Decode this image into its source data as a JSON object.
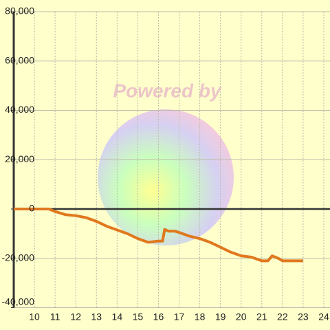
{
  "chart_data": {
    "type": "line",
    "watermark": "Powered by",
    "x": [
      9,
      10.7,
      11,
      11.5,
      12,
      12.5,
      13,
      13.5,
      14,
      14.5,
      15,
      15.5,
      16,
      16.2,
      16.3,
      16.5,
      16.8,
      17,
      17.5,
      18,
      18.5,
      19,
      19.5,
      20,
      20.5,
      21,
      21.3,
      21.5,
      21.8,
      22,
      23
    ],
    "series": [
      {
        "color": "#e0781e",
        "values": [
          0,
          0,
          -1000,
          -2300,
          -2700,
          -3500,
          -5000,
          -7000,
          -8500,
          -10000,
          -12000,
          -13500,
          -13000,
          -13000,
          -8300,
          -9000,
          -9000,
          -9500,
          -11000,
          -12000,
          -13500,
          -15500,
          -17500,
          -19000,
          -19500,
          -21000,
          -21000,
          -19000,
          -20000,
          -21000,
          -21000
        ]
      }
    ],
    "xlim": [
      9,
      24.3
    ],
    "xticks": [
      10,
      11,
      12,
      13,
      14,
      15,
      16,
      17,
      18,
      19,
      20,
      21,
      22,
      23,
      24
    ],
    "ylim": [
      -40000,
      80000
    ],
    "yticks": [
      {
        "value": -40000,
        "label": "-40,000"
      },
      {
        "value": -20000,
        "label": "-20,000"
      },
      0,
      {
        "value": 20000,
        "label": "20,000"
      },
      {
        "value": 40000,
        "label": "40,000"
      },
      {
        "value": 60000,
        "label": "60,000"
      },
      {
        "value": 80000,
        "label": "80,000"
      }
    ],
    "grid": true
  }
}
